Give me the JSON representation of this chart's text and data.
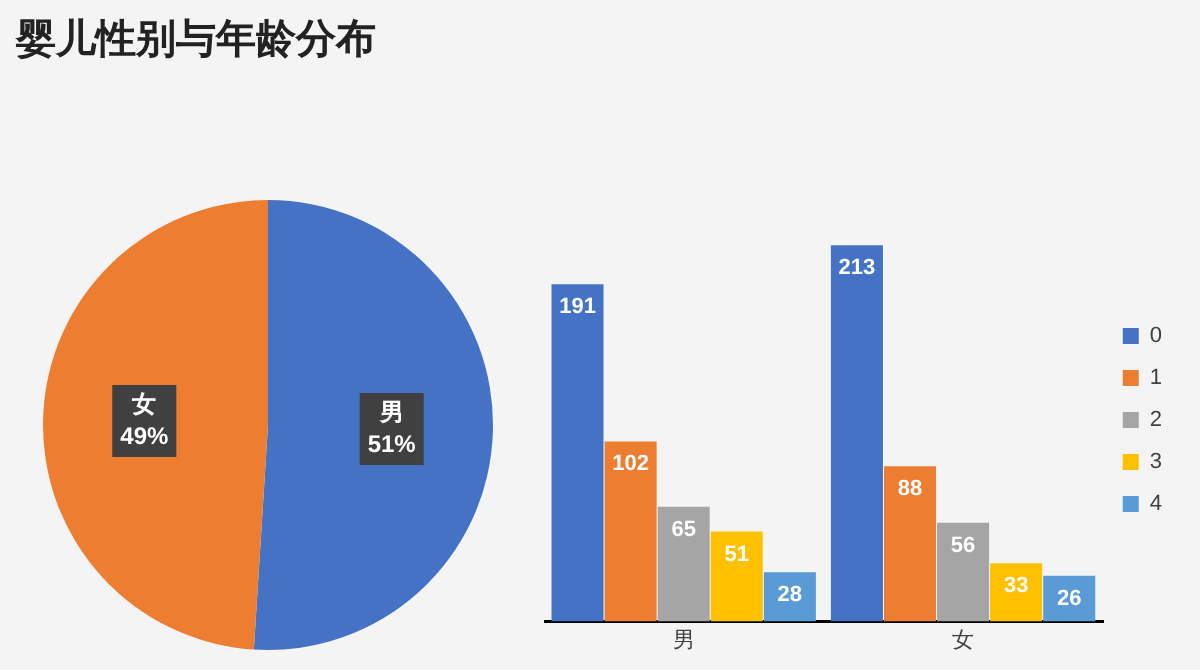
{
  "chart_data": [
    {
      "type": "pie",
      "title": "婴儿性别与年龄分布",
      "categories": [
        "男",
        "女"
      ],
      "values": [
        51,
        49
      ],
      "colors": [
        "#4472c4",
        "#ed7d31"
      ],
      "value_labels": [
        "51%",
        "49%"
      ],
      "legend": false
    },
    {
      "type": "bar",
      "categories": [
        "男",
        "女"
      ],
      "series": [
        {
          "name": "0",
          "color": "#4472c4",
          "values": [
            191,
            213
          ]
        },
        {
          "name": "1",
          "color": "#ed7d31",
          "values": [
            102,
            88
          ]
        },
        {
          "name": "2",
          "color": "#a5a5a5",
          "values": [
            65,
            56
          ]
        },
        {
          "name": "3",
          "color": "#ffc000",
          "values": [
            51,
            33
          ]
        },
        {
          "name": "4",
          "color": "#5b9bd5",
          "values": [
            28,
            26
          ]
        }
      ],
      "data_labels": true,
      "legend": "right",
      "grid": false,
      "tick_labels": "x"
    }
  ]
}
